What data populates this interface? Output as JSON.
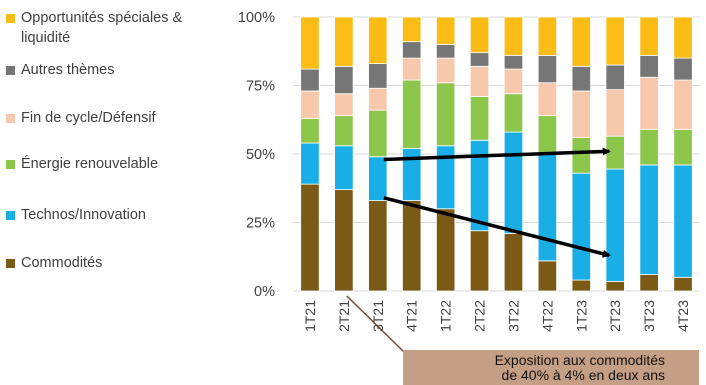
{
  "chart_data": {
    "type": "bar",
    "stacked": true,
    "categories": [
      "1T21",
      "2T21",
      "3T21",
      "4T21",
      "1T22",
      "2T22",
      "3T22",
      "4T22",
      "1T23",
      "2T23",
      "3T23",
      "4T23"
    ],
    "series": [
      {
        "name": "Commodités",
        "color": "#7a5a14",
        "values": [
          39,
          37,
          33,
          33,
          30,
          22,
          21,
          11,
          4,
          3.5,
          6,
          5
        ]
      },
      {
        "name": "Technos/Innovation",
        "color": "#1aaee6",
        "values": [
          15,
          16,
          16,
          19,
          23,
          33,
          37,
          39,
          39,
          41,
          40,
          41
        ]
      },
      {
        "name": "Énergie renouvelable",
        "color": "#8cc64b",
        "values": [
          9,
          11,
          17,
          25,
          23,
          16,
          14,
          14,
          13,
          12,
          13,
          13
        ]
      },
      {
        "name": "Fin de cycle/Défensif",
        "color": "#f7c8ab",
        "values": [
          10,
          8,
          8,
          8,
          9,
          11,
          9,
          12,
          17,
          17,
          19,
          18
        ]
      },
      {
        "name": "Autres thèmes",
        "color": "#767676",
        "values": [
          8,
          10,
          9,
          6,
          5,
          5,
          5,
          10,
          9,
          9,
          8,
          8
        ]
      },
      {
        "name": "Opportunités spéciales & liquidité",
        "color": "#fbbc15",
        "values": [
          19,
          18,
          17,
          9,
          10,
          13,
          14,
          14,
          18,
          17.5,
          14,
          15
        ]
      }
    ],
    "legend_order": [
      "Opportunités spéciales & liquidité",
      "Autres thèmes",
      "Fin de cycle/Défensif",
      "Énergie renouvelable",
      "Technos/Innovation",
      "Commodités"
    ],
    "y_ticks": [
      "0%",
      "25%",
      "50%",
      "75%",
      "100%"
    ],
    "ylim": [
      0,
      100
    ],
    "grid": true,
    "legend_position": "left",
    "annotations": {
      "arrows": [
        {
          "from": {
            "x": "3T21",
            "y": 48
          },
          "to": {
            "x": "2T23",
            "y": 51
          }
        },
        {
          "from": {
            "x": "3T21",
            "y": 34
          },
          "to": {
            "x": "2T23",
            "y": 13
          }
        }
      ],
      "callout": {
        "line1": "Exposition aux commodités",
        "line2": "de 40% à 4% en deux ans",
        "background": "#c59f85",
        "leader_from": "2T21"
      }
    }
  }
}
